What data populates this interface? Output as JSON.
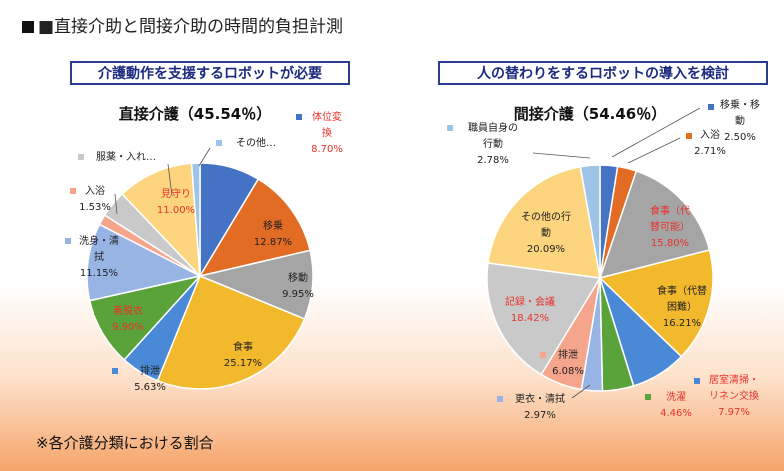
{
  "title": "■直接介助と間接介助の時間的負担計測",
  "banners": {
    "left": "介護動作を支援するロボットが必要",
    "right": "人の替わりをするロボットの導入を検討"
  },
  "footnote": "※各介護分類における割合",
  "chart_data": [
    {
      "type": "pie",
      "title": "直接介護（45.54％）",
      "slices": [
        {
          "name": "体位変換",
          "label_lines": [
            "体位変",
            "換"
          ],
          "value": 8.7,
          "value_text": "8.70%",
          "color": "#4472c4",
          "highlight": true
        },
        {
          "name": "移乗",
          "label_lines": [
            "移乗"
          ],
          "value": 12.87,
          "value_text": "12.87%",
          "color": "#e36c24",
          "highlight": false
        },
        {
          "name": "移動",
          "label_lines": [
            "移動"
          ],
          "value": 9.95,
          "value_text": "9.95%",
          "color": "#a5a5a5",
          "highlight": false
        },
        {
          "name": "食事",
          "label_lines": [
            "食事"
          ],
          "value": 25.17,
          "value_text": "25.17%",
          "color": "#f2b92d",
          "highlight": false
        },
        {
          "name": "排泄",
          "label_lines": [
            "排泄"
          ],
          "value": 5.63,
          "value_text": "5.63%",
          "color": "#4a89d6",
          "highlight": false
        },
        {
          "name": "着脱衣",
          "label_lines": [
            "着脱衣"
          ],
          "value": 9.9,
          "value_text": "9.90%",
          "color": "#5aa23a",
          "highlight": true
        },
        {
          "name": "洗身・清拭",
          "label_lines": [
            "洗身・清",
            "拭"
          ],
          "value": 11.15,
          "value_text": "11.15%",
          "color": "#98b4e4",
          "highlight": false
        },
        {
          "name": "入浴",
          "label_lines": [
            "入浴"
          ],
          "value": 1.53,
          "value_text": "1.53%",
          "color": "#f4a58c",
          "highlight": false
        },
        {
          "name": "服薬・入れ…",
          "label_lines": [
            "服薬・入れ…"
          ],
          "value": 3.9,
          "value_text": "",
          "color": "#c9c9c9",
          "highlight": false
        },
        {
          "name": "見守り",
          "label_lines": [
            "見守り"
          ],
          "value": 11.0,
          "value_text": "11.00%",
          "color": "#fcd57e",
          "highlight": true
        },
        {
          "name": "その他…",
          "label_lines": [
            "その他…"
          ],
          "value": 1.2,
          "value_text": "",
          "color": "#9dc3e6",
          "highlight": false
        }
      ]
    },
    {
      "type": "pie",
      "title": "間接介護（54.46％）",
      "slices": [
        {
          "name": "移乗・移動",
          "label_lines": [
            "移乗・移",
            "動"
          ],
          "value": 2.5,
          "value_text": "2.50%",
          "color": "#4472c4",
          "highlight": false
        },
        {
          "name": "入浴",
          "label_lines": [
            "入浴"
          ],
          "value": 2.71,
          "value_text": "2.71%",
          "color": "#e36c24",
          "highlight": false
        },
        {
          "name": "食事（代替可能）",
          "label_lines": [
            "食事（代",
            "替可能）"
          ],
          "value": 15.8,
          "value_text": "15.80%",
          "color": "#a5a5a5",
          "highlight": true
        },
        {
          "name": "食事（代替困難）",
          "label_lines": [
            "食事（代替",
            "困難）"
          ],
          "value": 16.21,
          "value_text": "16.21%",
          "color": "#f2b92d",
          "highlight": false
        },
        {
          "name": "居室清掃・リネン交換",
          "label_lines": [
            "居室清掃・",
            "リネン交換"
          ],
          "value": 7.97,
          "value_text": "7.97%",
          "color": "#4a89d6",
          "highlight": true
        },
        {
          "name": "洗濯",
          "label_lines": [
            "洗濯"
          ],
          "value": 4.46,
          "value_text": "4.46%",
          "color": "#5aa23a",
          "highlight": true
        },
        {
          "name": "更衣・清拭",
          "label_lines": [
            "更衣・清拭"
          ],
          "value": 2.97,
          "value_text": "2.97%",
          "color": "#98b4e4",
          "highlight": false
        },
        {
          "name": "排泄",
          "label_lines": [
            "排泄"
          ],
          "value": 6.08,
          "value_text": "6.08%",
          "color": "#f4a58c",
          "highlight": false
        },
        {
          "name": "記録・会議",
          "label_lines": [
            "記録・会議"
          ],
          "value": 18.42,
          "value_text": "18.42%",
          "color": "#c9c9c9",
          "highlight": true
        },
        {
          "name": "その他の行動",
          "label_lines": [
            "その他の行",
            "動"
          ],
          "value": 20.09,
          "value_text": "20.09%",
          "color": "#fcd57e",
          "highlight": false
        },
        {
          "name": "職員自身の行動",
          "label_lines": [
            "職員自身の",
            "行動"
          ],
          "value": 2.78,
          "value_text": "2.78%",
          "color": "#9dc3e6",
          "highlight": false
        }
      ]
    }
  ]
}
